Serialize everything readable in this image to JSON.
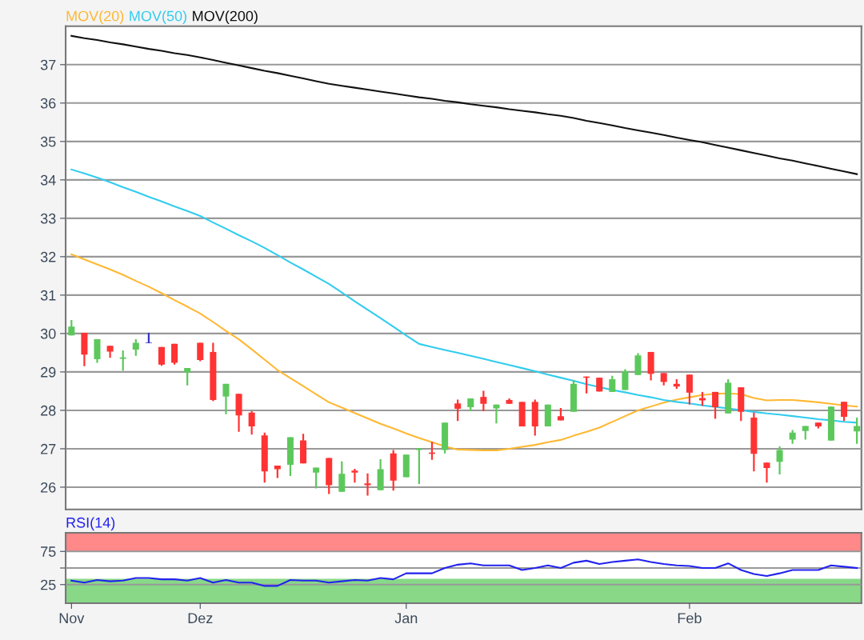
{
  "chart_data": [
    {
      "type": "candlestick",
      "categories": [
        null,
        null,
        null,
        null,
        null,
        null,
        null,
        null,
        null,
        null,
        null,
        null,
        null,
        null,
        null,
        null,
        null,
        null,
        null,
        null,
        null,
        null,
        null,
        null,
        null,
        null,
        null,
        null,
        null,
        null,
        null,
        null,
        null,
        null,
        null,
        null,
        null,
        null,
        null,
        null,
        null,
        null,
        null,
        null,
        null,
        null,
        null,
        null,
        null,
        null,
        null,
        null,
        null,
        null,
        null,
        null,
        null,
        null,
        null,
        null,
        null,
        null
      ],
      "ohlc": [
        [
          29.95,
          30.35,
          29.95,
          30.18
        ],
        [
          30.02,
          30.02,
          29.15,
          29.45
        ],
        [
          29.33,
          29.85,
          29.24,
          29.85
        ],
        [
          29.68,
          29.68,
          29.37,
          29.53
        ],
        [
          29.34,
          29.56,
          29.03,
          29.38
        ],
        [
          29.58,
          29.85,
          29.42,
          29.76
        ],
        [
          29.75,
          30.02,
          29.75,
          29.75
        ],
        [
          29.65,
          29.65,
          29.16,
          29.19
        ],
        [
          29.73,
          29.73,
          29.19,
          29.24
        ],
        [
          28.98,
          29.1,
          28.65,
          29.1
        ],
        [
          29.76,
          29.76,
          29.28,
          29.31
        ],
        [
          29.52,
          29.76,
          28.24,
          28.27
        ],
        [
          28.36,
          28.69,
          27.9,
          28.69
        ],
        [
          28.43,
          28.43,
          27.44,
          27.87
        ],
        [
          27.94,
          27.98,
          27.37,
          27.58
        ],
        [
          27.35,
          27.42,
          26.12,
          26.41
        ],
        [
          26.56,
          26.56,
          26.24,
          26.47
        ],
        [
          26.58,
          27.3,
          26.29,
          27.3
        ],
        [
          27.22,
          27.39,
          26.62,
          26.62
        ],
        [
          26.38,
          26.51,
          25.97,
          26.51
        ],
        [
          26.76,
          26.76,
          25.82,
          26.05
        ],
        [
          25.88,
          26.67,
          25.88,
          26.35
        ],
        [
          26.43,
          26.48,
          26.12,
          26.38
        ],
        [
          26.1,
          26.36,
          25.78,
          26.05
        ],
        [
          25.92,
          26.73,
          25.92,
          26.47
        ],
        [
          26.88,
          26.97,
          25.91,
          26.17
        ],
        [
          26.26,
          26.85,
          26.26,
          26.85
        ],
        [
          26.97,
          27.01,
          26.08,
          27.01
        ],
        [
          26.9,
          27.18,
          26.71,
          26.87
        ],
        [
          26.97,
          27.68,
          26.88,
          27.68
        ],
        [
          28.18,
          28.28,
          27.72,
          28.04
        ],
        [
          28.08,
          28.31,
          27.98,
          28.31
        ],
        [
          28.35,
          28.51,
          27.98,
          28.17
        ],
        [
          28.05,
          28.15,
          27.66,
          28.15
        ],
        [
          28.27,
          28.31,
          28.17,
          28.17
        ],
        [
          28.22,
          28.22,
          27.58,
          27.58
        ],
        [
          28.22,
          28.28,
          27.34,
          27.58
        ],
        [
          27.58,
          28.15,
          27.58,
          28.15
        ],
        [
          27.85,
          28.06,
          27.74,
          27.74
        ],
        [
          27.96,
          28.79,
          27.96,
          28.69
        ],
        [
          28.88,
          28.88,
          28.44,
          28.85
        ],
        [
          28.85,
          28.85,
          28.49,
          28.49
        ],
        [
          28.48,
          28.9,
          28.48,
          28.81
        ],
        [
          28.53,
          29.07,
          28.53,
          29.02
        ],
        [
          28.92,
          29.49,
          28.92,
          29.43
        ],
        [
          29.52,
          29.52,
          28.78,
          28.95
        ],
        [
          28.97,
          28.97,
          28.65,
          28.74
        ],
        [
          28.69,
          28.81,
          28.56,
          28.62
        ],
        [
          28.93,
          28.93,
          28.15,
          28.46
        ],
        [
          28.32,
          28.48,
          28.12,
          28.26
        ],
        [
          28.48,
          28.48,
          27.78,
          28.08
        ],
        [
          27.92,
          28.81,
          27.92,
          28.72
        ],
        [
          28.6,
          28.6,
          27.72,
          27.96
        ],
        [
          27.81,
          27.94,
          26.41,
          26.87
        ],
        [
          26.64,
          26.64,
          26.12,
          26.5
        ],
        [
          26.66,
          27.06,
          26.33,
          26.97
        ],
        [
          27.24,
          27.49,
          27.13,
          27.42
        ],
        [
          27.46,
          27.59,
          27.24,
          27.59
        ],
        [
          27.68,
          27.68,
          27.53,
          27.58
        ],
        [
          27.21,
          28.1,
          27.21,
          28.1
        ],
        [
          28.22,
          28.22,
          27.72,
          27.83
        ],
        [
          27.45,
          27.81,
          27.13,
          27.59
        ]
      ],
      "colors": [
        "#5cc85c",
        "#ff3333",
        "#5cc85c",
        "#ff3333",
        "#5cc85c",
        "#5cc85c",
        "#3333cc",
        "#ff3333",
        "#ff3333",
        "#5cc85c",
        "#ff3333",
        "#ff3333",
        "#5cc85c",
        "#ff3333",
        "#ff3333",
        "#ff3333",
        "#ff3333",
        "#5cc85c",
        "#ff3333",
        "#5cc85c",
        "#ff3333",
        "#5cc85c",
        "#ff3333",
        "#ff3333",
        "#5cc85c",
        "#ff3333",
        "#5cc85c",
        "#5cc85c",
        "#ff3333",
        "#5cc85c",
        "#ff3333",
        "#5cc85c",
        "#ff3333",
        "#5cc85c",
        "#ff3333",
        "#ff3333",
        "#ff3333",
        "#5cc85c",
        "#ff3333",
        "#5cc85c",
        "#ff3333",
        "#ff3333",
        "#5cc85c",
        "#5cc85c",
        "#5cc85c",
        "#ff3333",
        "#ff3333",
        "#ff3333",
        "#ff3333",
        "#ff3333",
        "#ff3333",
        "#5cc85c",
        "#ff3333",
        "#ff3333",
        "#ff3333",
        "#5cc85c",
        "#5cc85c",
        "#5cc85c",
        "#ff3333",
        "#5cc85c",
        "#ff3333",
        "#5cc85c"
      ],
      "series": [
        {
          "type": "line",
          "name": "MOV(20)",
          "color": "#ffb833",
          "values": [
            32.06,
            31.93,
            31.8,
            31.67,
            31.53,
            31.37,
            31.22,
            31.05,
            30.87,
            30.7,
            30.52,
            30.3,
            30.07,
            29.85,
            29.59,
            29.32,
            29.05,
            28.84,
            28.63,
            28.42,
            28.21,
            28.07,
            27.93,
            27.79,
            27.65,
            27.53,
            27.4,
            27.28,
            27.17,
            27.06,
            26.98,
            26.97,
            26.96,
            26.96,
            27.0,
            27.05,
            27.1,
            27.17,
            27.23,
            27.34,
            27.44,
            27.55,
            27.7,
            27.85,
            28.0,
            28.1,
            28.2,
            28.28,
            28.34,
            28.4,
            28.43,
            28.44,
            28.42,
            28.32,
            28.26,
            28.27,
            28.27,
            28.24,
            28.21,
            28.17,
            28.13,
            28.1
          ]
        },
        {
          "type": "line",
          "name": "MOV(50)",
          "color": "#33ccee",
          "values": [
            34.27,
            34.17,
            34.06,
            33.94,
            33.81,
            33.69,
            33.56,
            33.44,
            33.31,
            33.19,
            33.06,
            32.89,
            32.73,
            32.56,
            32.4,
            32.23,
            32.04,
            31.85,
            31.67,
            31.48,
            31.29,
            31.07,
            30.84,
            30.62,
            30.4,
            30.18,
            29.95,
            29.73,
            29.65,
            29.57,
            29.5,
            29.42,
            29.34,
            29.26,
            29.18,
            29.1,
            29.02,
            28.93,
            28.85,
            28.77,
            28.68,
            null,
            28.53,
            28.47,
            28.4,
            28.34,
            28.27,
            28.22,
            28.18,
            28.13,
            28.09,
            28.05,
            null,
            27.96,
            27.92,
            27.89,
            27.85,
            27.81,
            27.77,
            27.74,
            27.7,
            27.68
          ]
        },
        {
          "type": "line",
          "name": "MOV(200)",
          "color": "#111111",
          "values": [
            37.75,
            37.69,
            37.64,
            37.58,
            37.53,
            37.47,
            37.41,
            37.36,
            37.3,
            37.25,
            37.19,
            37.12,
            37.05,
            36.98,
            36.91,
            36.84,
            36.78,
            36.71,
            36.64,
            36.57,
            36.5,
            36.45,
            36.4,
            36.35,
            36.3,
            36.25,
            36.2,
            36.15,
            36.11,
            36.06,
            36.02,
            35.97,
            35.93,
            35.89,
            35.84,
            35.8,
            35.76,
            35.71,
            35.67,
            35.61,
            35.54,
            35.48,
            35.42,
            35.35,
            35.29,
            35.23,
            35.17,
            35.1,
            35.04,
            34.98,
            34.91,
            34.84,
            34.77,
            34.7,
            34.63,
            34.56,
            34.5,
            34.43,
            34.36,
            34.29,
            34.22,
            34.15
          ]
        }
      ],
      "ylim": [
        25.42,
        38.0
      ],
      "yticks": [
        26,
        27,
        28,
        29,
        30,
        31,
        32,
        33,
        34,
        35,
        36,
        37
      ],
      "grid": "y",
      "legend": "top left",
      "tick_labels": "y"
    },
    {
      "type": "line",
      "categories": [
        "Nov",
        null,
        null,
        null,
        null,
        null,
        null,
        null,
        null,
        null,
        "Dez",
        null,
        null,
        null,
        null,
        null,
        null,
        null,
        null,
        null,
        null,
        null,
        null,
        null,
        null,
        null,
        "Jan",
        null,
        null,
        null,
        null,
        null,
        null,
        null,
        null,
        null,
        null,
        null,
        null,
        null,
        null,
        null,
        null,
        null,
        null,
        null,
        null,
        null,
        "Feb",
        null,
        null,
        null,
        null,
        null,
        null,
        null,
        null,
        null,
        null,
        null,
        null,
        null
      ],
      "series": [
        {
          "name": "RSI(14)",
          "color": "#2222ee",
          "values": [
            31,
            28,
            32,
            30,
            31,
            35,
            35,
            33,
            33,
            31,
            35,
            28,
            32,
            28,
            28,
            23,
            23,
            32,
            31,
            31,
            28,
            30,
            32,
            31,
            35,
            33,
            42,
            42,
            42,
            50,
            55,
            57,
            54,
            54,
            54,
            47,
            50,
            54,
            50,
            58,
            61,
            56,
            59,
            61,
            63,
            59,
            56,
            54,
            53,
            50,
            50,
            57,
            47,
            41,
            38,
            42,
            47,
            47,
            47,
            54,
            52,
            50
          ]
        }
      ],
      "ylim": [
        -3,
        103
      ],
      "yticks": [
        25,
        {
          "value": 50,
          "label": null
        },
        75
      ],
      "bands": [
        {
          "axis": "y",
          "from": 75,
          "to": 103,
          "color": "#ff8888"
        },
        {
          "axis": "y",
          "from": -3,
          "to": 33,
          "color": "#88d888"
        }
      ],
      "grid": "y",
      "legend": "top left"
    }
  ]
}
